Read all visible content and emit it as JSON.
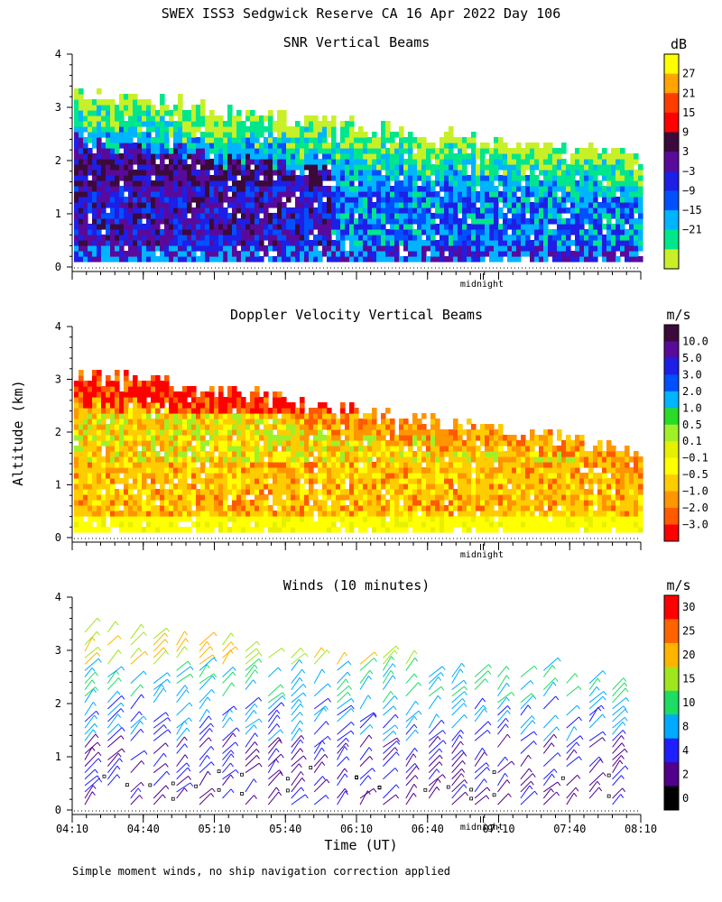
{
  "title": "SWEX ISS3 Sedgwick Reserve CA  16 Apr 2022 Day 106",
  "ylabel": "Altitude (km)",
  "xlabel": "Time (UT)",
  "footnote": "Simple moment winds, no ship navigation correction applied",
  "midnight_label": "midnight",
  "chart_data": [
    {
      "type": "heatmap",
      "title": "SNR Vertical Beams",
      "ylabel": "Altitude (km)",
      "ylim": [
        0,
        4
      ],
      "yticks": [
        "0",
        "1",
        "2",
        "3",
        "4"
      ],
      "xlim": [
        "04:10",
        "08:10"
      ],
      "colorbar": {
        "units": "dB",
        "labels": [
          "27",
          "21",
          "15",
          "9",
          "3",
          "−3",
          "−9",
          "−15",
          "−21"
        ],
        "colors": [
          "#ffff00",
          "#ffa500",
          "#ff3c00",
          "#ff0000",
          "#3a0a3a",
          "#5a0a9a",
          "#1e1ee6",
          "#0050ff",
          "#00b4ff",
          "#00e68c",
          "#c8f028"
        ]
      },
      "midnight_label": "midnight"
    },
    {
      "type": "heatmap",
      "title": "Doppler Velocity Vertical Beams",
      "ylabel": "Altitude (km)",
      "ylim": [
        0,
        4
      ],
      "yticks": [
        "0",
        "1",
        "2",
        "3",
        "4"
      ],
      "xlim": [
        "04:10",
        "08:10"
      ],
      "colorbar": {
        "units": "m/s",
        "labels": [
          "10.0",
          "5.0",
          "3.0",
          "2.0",
          "1.0",
          "0.5",
          "0.1",
          "−0.1",
          "−0.5",
          "−1.0",
          "−2.0",
          "−3.0"
        ],
        "colors": [
          "#3a0a3a",
          "#5a0a9a",
          "#1e1ee6",
          "#0050ff",
          "#00b4ff",
          "#28dc28",
          "#a0f028",
          "#e6f000",
          "#ffff00",
          "#ffcc00",
          "#ff9600",
          "#ff5a00",
          "#ff0000"
        ]
      },
      "midnight_label": "midnight"
    },
    {
      "type": "scatter",
      "title": "Winds (10 minutes)",
      "ylabel": "Altitude (km)",
      "xlabel": "Time (UT)",
      "ylim": [
        0,
        4
      ],
      "yticks": [
        "0",
        "1",
        "2",
        "3",
        "4"
      ],
      "categories": [
        "04:10",
        "04:40",
        "05:10",
        "05:40",
        "06:10",
        "06:40",
        "07:10",
        "07:40",
        "08:10"
      ],
      "colorbar": {
        "units": "m/s",
        "labels": [
          "30",
          "25",
          "20",
          "15",
          "10",
          "8",
          "4",
          "2",
          "0"
        ],
        "colors": [
          "#ff0000",
          "#ff6400",
          "#ffb400",
          "#a0e61e",
          "#1edc64",
          "#00aaff",
          "#1e1eff",
          "#50008c",
          "#000000"
        ]
      },
      "midnight_label": "midnight"
    }
  ]
}
